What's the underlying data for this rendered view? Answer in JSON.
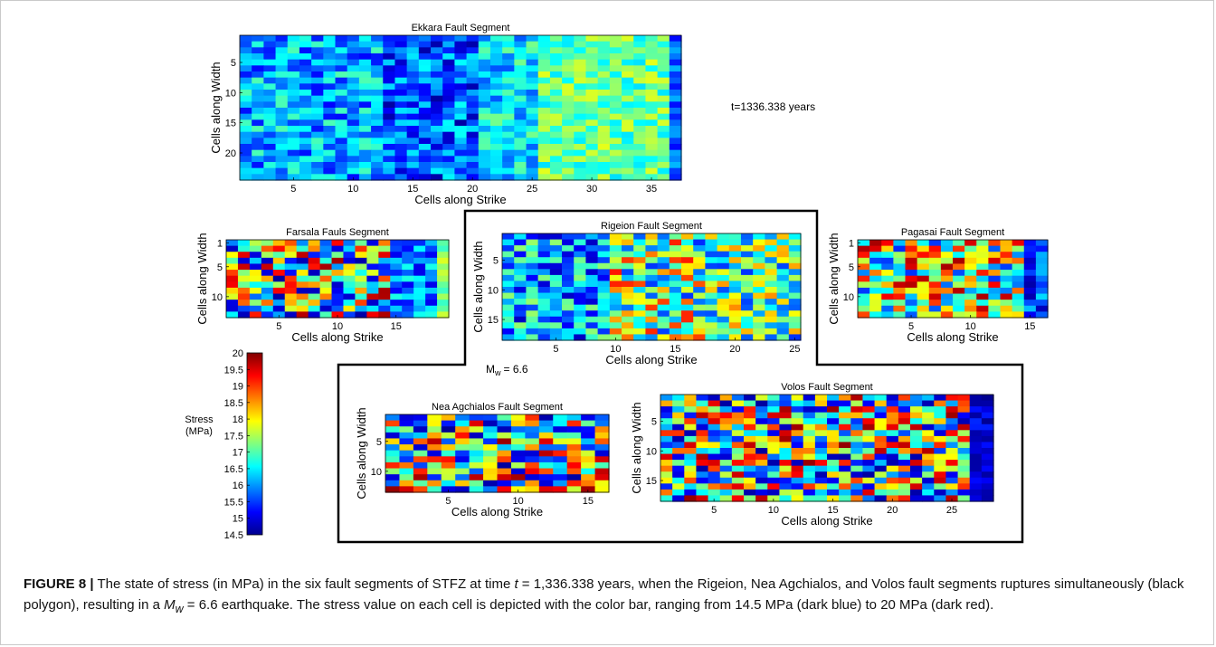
{
  "figure": {
    "time_label": "t=1336.338 years",
    "magnitude": {
      "symbol": "M",
      "subscript": "w",
      "value": "= 6.6"
    },
    "caption": {
      "label": "FIGURE 8",
      "separator": "|",
      "part1": " The state of stress (in MPa) in the six fault segments of STFZ at time ",
      "t_symbol": "t",
      "part2": " = 1,336.338 years, when the Rigeion, Nea Agchialos, and Volos fault segments ruptures simultaneously (black polygon), resulting in a ",
      "mw_symbol": "M",
      "mw_sub": "w",
      "part3": " = 6.6 earthquake. The stress value on each cell is depicted with the color bar, ranging from 14.5 MPa (dark blue) to 20 MPa (dark red)."
    }
  },
  "colorbar": {
    "title_line1": "Stress",
    "title_line2": "(MPa)",
    "min": 14.5,
    "max": 20,
    "ticks": [
      "20",
      "19.5",
      "19",
      "18.5",
      "18",
      "17.5",
      "17",
      "16.5",
      "16",
      "15.5",
      "15",
      "14.5"
    ],
    "colors": [
      "#00008f",
      "#0000ff",
      "#0080ff",
      "#00ffff",
      "#80ff80",
      "#ffff00",
      "#ff8000",
      "#ff0000",
      "#800000"
    ]
  },
  "chart_data": [
    {
      "type": "heatmap",
      "id": "ekkara",
      "title": "Ekkara Fault Segment",
      "xlabel": "Cells along Strike",
      "ylabel": "Cells along Width",
      "ncols": 37,
      "nrows": 24,
      "seed": 11,
      "xticks": [
        5,
        10,
        15,
        20,
        25,
        30,
        35
      ],
      "yticks": [
        5,
        10,
        15,
        20
      ],
      "zones": [
        {
          "x0": 1,
          "x1": 12,
          "low": 15.2,
          "high": 17.0
        },
        {
          "x0": 12,
          "x1": 20,
          "low": 14.6,
          "high": 16.6
        },
        {
          "x0": 20,
          "x1": 25,
          "low": 15.6,
          "high": 17.2
        },
        {
          "x0": 25,
          "x1": 36,
          "low": 16.4,
          "high": 17.8
        },
        {
          "x0": 36,
          "x1": 37,
          "low": 15.2,
          "high": 16.2
        }
      ]
    },
    {
      "type": "heatmap",
      "id": "farsala",
      "title": "Farsala Fauls Segment",
      "xlabel": "Cells along Strike",
      "ylabel": "Cells along Width",
      "ncols": 19,
      "nrows": 13,
      "seed": 23,
      "xticks": [
        5,
        10,
        15
      ],
      "yticks": [
        1,
        5,
        10
      ],
      "zones": [
        {
          "x0": 1,
          "x1": 14,
          "low": 14.6,
          "high": 19.8
        },
        {
          "x0": 14,
          "x1": 18,
          "low": 15.0,
          "high": 16.8
        },
        {
          "x0": 18,
          "x1": 19,
          "low": 16.8,
          "high": 17.8
        }
      ]
    },
    {
      "type": "heatmap",
      "id": "rigeion",
      "title": "Rigeion Fault Segment",
      "xlabel": "Cells along Strike",
      "ylabel": "Cells along Width",
      "ncols": 25,
      "nrows": 18,
      "seed": 37,
      "xticks": [
        5,
        10,
        15,
        20,
        25
      ],
      "yticks": [
        5,
        10,
        15
      ],
      "zones": [
        {
          "x0": 1,
          "x1": 9,
          "low": 14.8,
          "high": 17.4
        },
        {
          "x0": 9,
          "x1": 17,
          "low": 15.4,
          "high": 19.2
        },
        {
          "x0": 17,
          "x1": 25,
          "low": 15.4,
          "high": 18.6
        }
      ]
    },
    {
      "type": "heatmap",
      "id": "pagasai",
      "title": "Pagasai Fault Segment",
      "xlabel": "Cells along Strike",
      "ylabel": "Cells along Width",
      "ncols": 16,
      "nrows": 13,
      "seed": 41,
      "xticks": [
        5,
        10,
        15
      ],
      "yticks": [
        1,
        5,
        10
      ],
      "zones": [
        {
          "x0": 1,
          "x1": 14,
          "low": 15.4,
          "high": 19.8
        },
        {
          "x0": 14,
          "x1": 16,
          "low": 14.6,
          "high": 16.4
        }
      ]
    },
    {
      "type": "heatmap",
      "id": "nea-agchialos",
      "title": "Nea Agchialos Fault Segment",
      "xlabel": "Cells along Strike",
      "ylabel": "Cells along Width",
      "ncols": 16,
      "nrows": 13,
      "seed": 53,
      "xticks": [
        5,
        10,
        15
      ],
      "yticks": [
        5,
        10
      ],
      "zones": [
        {
          "x0": 1,
          "x1": 16,
          "low": 14.5,
          "high": 19.9
        }
      ]
    },
    {
      "type": "heatmap",
      "id": "volos",
      "title": "Volos Fault Segment",
      "xlabel": "Cells along Strike",
      "ylabel": "Cells along Width",
      "ncols": 28,
      "nrows": 18,
      "seed": 67,
      "xticks": [
        5,
        10,
        15,
        20,
        25
      ],
      "yticks": [
        5,
        10,
        15
      ],
      "zones": [
        {
          "x0": 1,
          "x1": 26,
          "low": 14.6,
          "high": 19.9
        },
        {
          "x0": 26,
          "x1": 28,
          "low": 14.5,
          "high": 15.4
        }
      ]
    }
  ]
}
